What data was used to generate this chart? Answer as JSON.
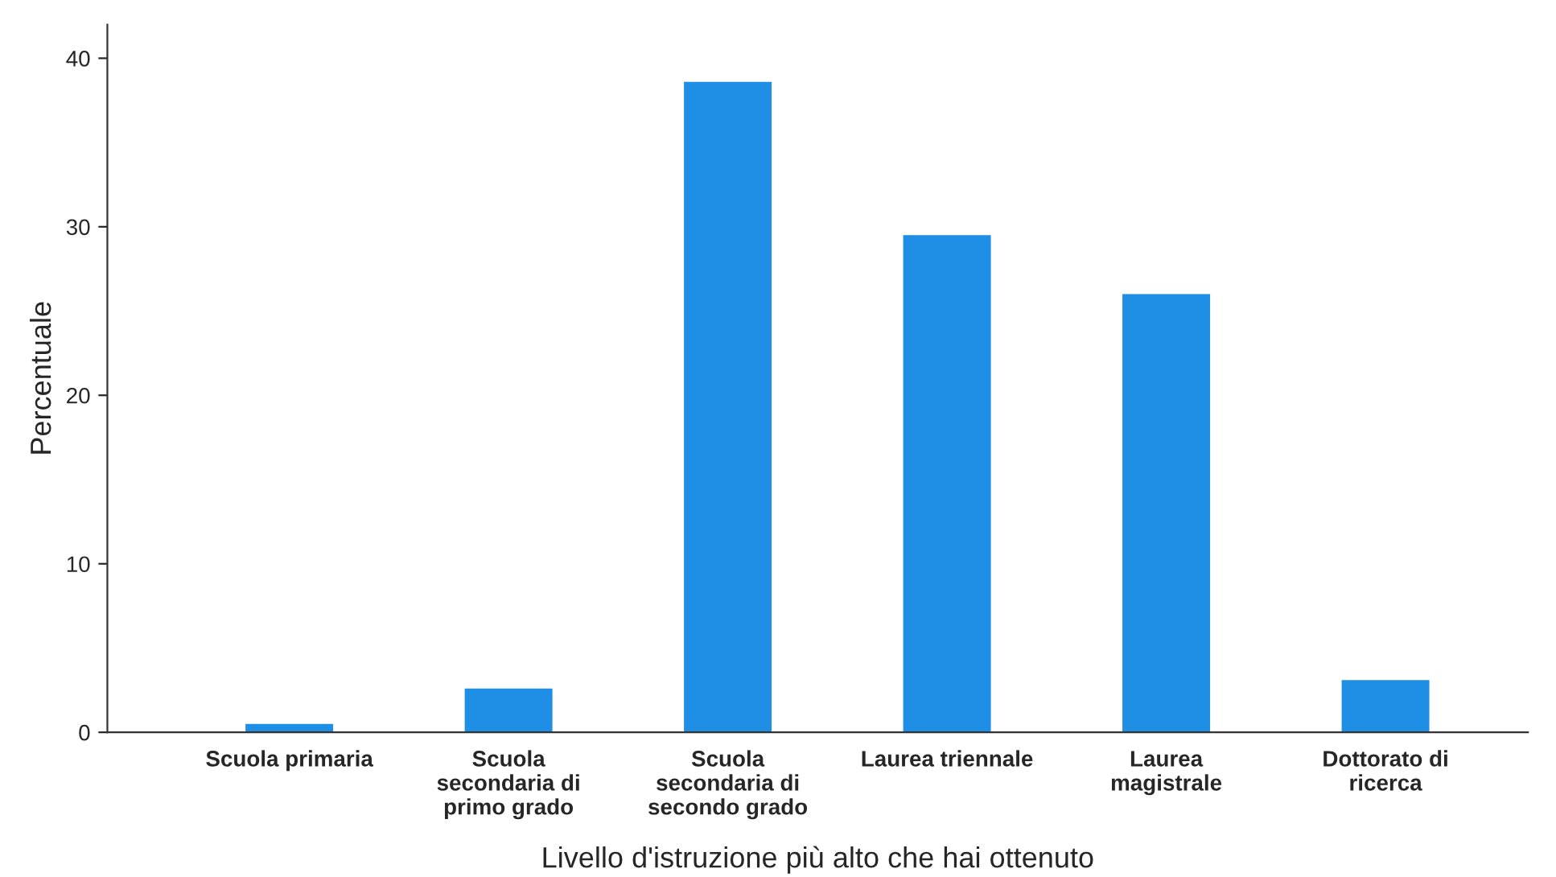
{
  "chart_data": {
    "type": "bar",
    "xlabel": "Livello d'istruzione più alto che hai ottenuto",
    "ylabel": "Percentuale",
    "categories": [
      "Scuola primaria",
      "Scuola\nsecondaria di\nprimo grado",
      "Scuola\nsecondaria di\nsecondo grado",
      "Laurea triennale",
      "Laurea\nmagistrale",
      "Dottorato di\nricerca"
    ],
    "values": [
      0.5,
      2.6,
      38.6,
      29.5,
      26.0,
      3.1
    ],
    "color": "#1f8fe6",
    "ylim": [
      0,
      42
    ],
    "yticks": [
      0,
      10,
      20,
      30,
      40
    ],
    "grid": false,
    "legend": false
  }
}
